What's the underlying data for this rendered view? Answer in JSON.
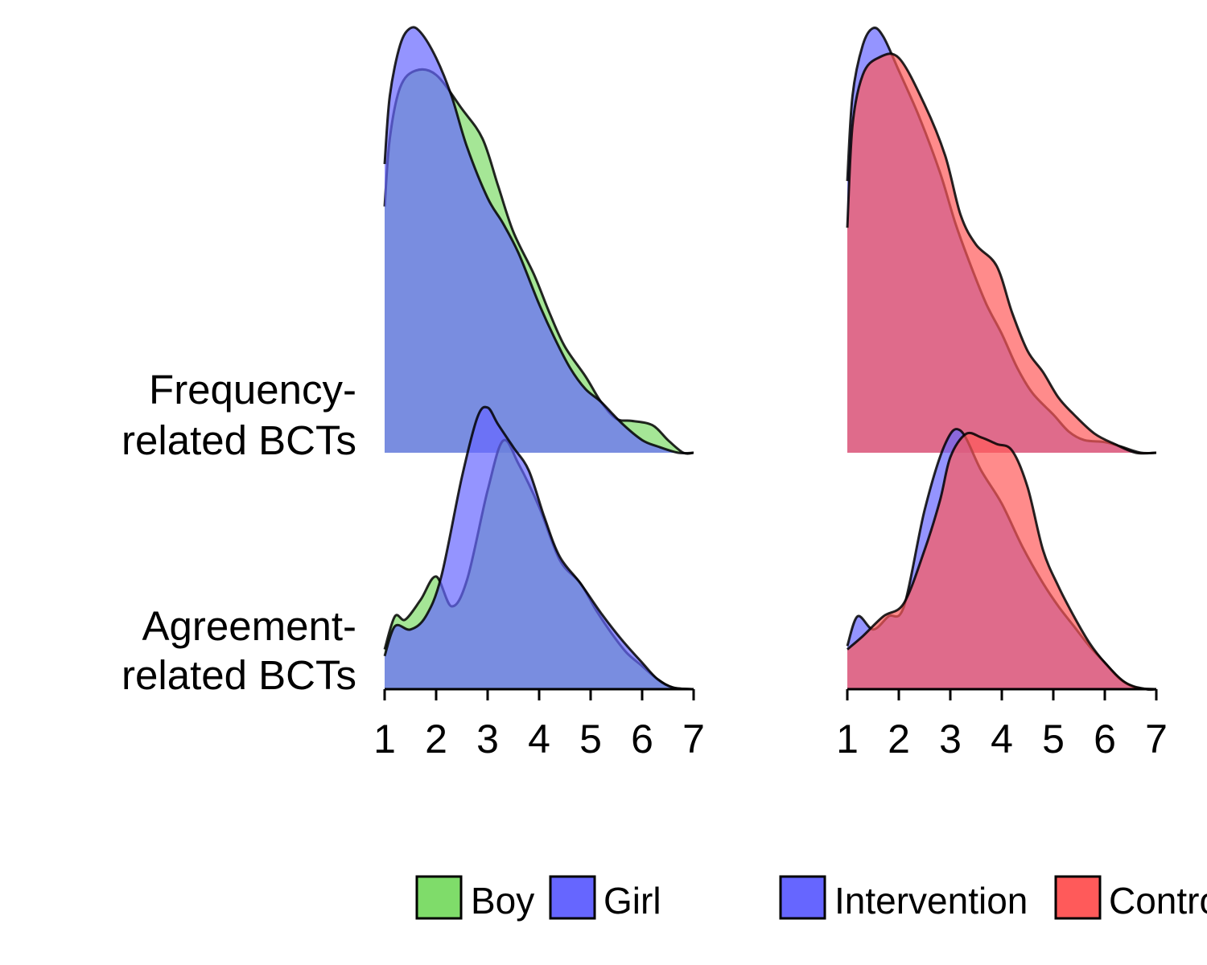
{
  "chart_data": [
    {
      "type": "ridgeline",
      "panel": "left",
      "categories": [
        "Frequency-related BCTs",
        "Agreement-related BCTs"
      ],
      "category_lines": [
        [
          "Frequency-",
          "related BCTs"
        ],
        [
          "Agreement-",
          "related BCTs"
        ]
      ],
      "xlim": [
        1,
        7
      ],
      "xticks": [
        1,
        2,
        3,
        4,
        5,
        6,
        7
      ],
      "grid": false,
      "series": [
        {
          "name": "Boy",
          "color": "#7fdc6a",
          "densities": {
            "Frequency-related BCTs": {
              "x": [
                1.0,
                1.1,
                1.3,
                1.6,
                2.0,
                2.5,
                2.9,
                3.2,
                3.5,
                3.9,
                4.2,
                4.5,
                4.9,
                5.2,
                5.5,
                5.8,
                6.2,
                6.5,
                6.8,
                7.0
              ],
              "y": [
                0.58,
                0.74,
                0.86,
                0.9,
                0.89,
                0.81,
                0.74,
                0.63,
                0.52,
                0.42,
                0.33,
                0.25,
                0.18,
                0.12,
                0.08,
                0.075,
                0.065,
                0.03,
                0.0,
                0.0
              ]
            },
            "Agreement-related BCTs": {
              "x": [
                1.0,
                1.2,
                1.4,
                1.7,
                2.0,
                2.3,
                2.6,
                3.0,
                3.3,
                3.6,
                4.0,
                4.4,
                4.8,
                5.1,
                5.4,
                5.7,
                6.0,
                6.3,
                6.6,
                7.0
              ],
              "y": [
                0.12,
                0.22,
                0.21,
                0.27,
                0.34,
                0.25,
                0.33,
                0.6,
                0.75,
                0.68,
                0.55,
                0.39,
                0.32,
                0.24,
                0.17,
                0.11,
                0.07,
                0.03,
                0.005,
                0.0
              ]
            }
          }
        },
        {
          "name": "Girl",
          "color": "#6666ff",
          "densities": {
            "Frequency-related BCTs": {
              "x": [
                1.0,
                1.1,
                1.3,
                1.5,
                1.7,
                2.0,
                2.3,
                2.6,
                3.0,
                3.3,
                3.6,
                4.0,
                4.3,
                4.6,
                4.9,
                5.2,
                5.6,
                6.0,
                6.3,
                6.7,
                7.0
              ],
              "y": [
                0.68,
                0.84,
                0.96,
                1.0,
                0.99,
                0.93,
                0.84,
                0.72,
                0.6,
                0.54,
                0.47,
                0.35,
                0.27,
                0.2,
                0.15,
                0.12,
                0.07,
                0.03,
                0.015,
                0.0,
                0.0
              ]
            },
            "Agreement-related BCTs": {
              "x": [
                1.0,
                1.2,
                1.5,
                1.8,
                2.1,
                2.5,
                2.8,
                3.0,
                3.2,
                3.5,
                3.8,
                4.1,
                4.4,
                4.8,
                5.2,
                5.6,
                6.0,
                6.3,
                6.6,
                7.0
              ],
              "y": [
                0.1,
                0.19,
                0.18,
                0.22,
                0.34,
                0.64,
                0.82,
                0.85,
                0.8,
                0.73,
                0.66,
                0.52,
                0.4,
                0.32,
                0.23,
                0.15,
                0.08,
                0.03,
                0.005,
                0.0
              ]
            }
          }
        }
      ],
      "legend": {
        "placement": "bottom",
        "entries": [
          "Boy",
          "Girl"
        ]
      }
    },
    {
      "type": "ridgeline",
      "panel": "right",
      "categories": [
        "Frequency-related BCTs",
        "Agreement-related BCTs"
      ],
      "xlim": [
        1,
        7
      ],
      "xticks": [
        1,
        2,
        3,
        4,
        5,
        6,
        7
      ],
      "grid": false,
      "series": [
        {
          "name": "Intervention",
          "color": "#6666ff",
          "densities": {
            "Frequency-related BCTs": {
              "x": [
                1.0,
                1.1,
                1.3,
                1.5,
                1.7,
                2.0,
                2.4,
                2.8,
                3.1,
                3.4,
                3.7,
                4.0,
                4.3,
                4.6,
                5.0,
                5.3,
                5.6,
                6.0,
                6.3,
                6.7,
                7.0
              ],
              "y": [
                0.64,
                0.84,
                0.96,
                1.0,
                0.98,
                0.9,
                0.79,
                0.66,
                0.54,
                0.44,
                0.35,
                0.28,
                0.2,
                0.14,
                0.09,
                0.05,
                0.03,
                0.025,
                0.015,
                0.0,
                0.0
              ]
            },
            "Agreement-related BCTs": {
              "x": [
                1.0,
                1.2,
                1.5,
                1.8,
                2.1,
                2.5,
                2.9,
                3.2,
                3.6,
                4.0,
                4.4,
                4.8,
                5.1,
                5.4,
                5.7,
                6.0,
                6.3,
                6.6,
                7.0
              ],
              "y": [
                0.13,
                0.22,
                0.18,
                0.22,
                0.25,
                0.54,
                0.74,
                0.78,
                0.66,
                0.56,
                0.43,
                0.32,
                0.25,
                0.19,
                0.13,
                0.08,
                0.03,
                0.005,
                0.0
              ]
            }
          }
        },
        {
          "name": "Control",
          "color": "#ff5a5a",
          "densities": {
            "Frequency-related BCTs": {
              "x": [
                1.0,
                1.1,
                1.3,
                1.6,
                2.0,
                2.5,
                2.9,
                3.2,
                3.5,
                3.9,
                4.2,
                4.5,
                4.8,
                5.1,
                5.4,
                5.8,
                6.2,
                6.6,
                7.0
              ],
              "y": [
                0.53,
                0.77,
                0.89,
                0.93,
                0.93,
                0.82,
                0.7,
                0.56,
                0.49,
                0.44,
                0.33,
                0.24,
                0.19,
                0.13,
                0.09,
                0.045,
                0.02,
                0.0,
                0.0
              ]
            },
            "Agreement-related BCTs": {
              "x": [
                1.0,
                1.3,
                1.7,
                2.1,
                2.5,
                2.8,
                3.0,
                3.3,
                3.6,
                3.9,
                4.2,
                4.5,
                4.8,
                5.1,
                5.4,
                5.7,
                6.0,
                6.4,
                6.8,
                7.0
              ],
              "y": [
                0.12,
                0.16,
                0.22,
                0.26,
                0.42,
                0.57,
                0.7,
                0.77,
                0.76,
                0.74,
                0.72,
                0.61,
                0.42,
                0.31,
                0.22,
                0.14,
                0.08,
                0.02,
                0.0,
                0.0
              ]
            }
          }
        }
      ],
      "legend": {
        "placement": "bottom",
        "entries": [
          "Intervention",
          "Control"
        ]
      }
    }
  ]
}
